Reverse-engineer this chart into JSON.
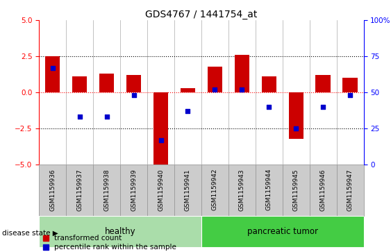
{
  "title": "GDS4767 / 1441754_at",
  "samples": [
    "GSM1159936",
    "GSM1159937",
    "GSM1159938",
    "GSM1159939",
    "GSM1159940",
    "GSM1159941",
    "GSM1159942",
    "GSM1159943",
    "GSM1159944",
    "GSM1159945",
    "GSM1159946",
    "GSM1159947"
  ],
  "transformed_count": [
    2.5,
    1.1,
    1.3,
    1.2,
    -5.0,
    0.3,
    1.8,
    2.6,
    1.1,
    -3.2,
    1.2,
    1.0
  ],
  "percentile_rank": [
    67,
    33,
    33,
    48,
    17,
    37,
    52,
    52,
    40,
    25,
    40,
    48
  ],
  "ylim_left": [
    -5,
    5
  ],
  "ylim_right": [
    0,
    100
  ],
  "yticks_left": [
    -5,
    -2.5,
    0,
    2.5,
    5
  ],
  "yticks_right": [
    0,
    25,
    50,
    75,
    100
  ],
  "bar_color": "#cc0000",
  "dot_color": "#0000cc",
  "healthy_indices": [
    0,
    1,
    2,
    3,
    4,
    5
  ],
  "tumor_indices": [
    6,
    7,
    8,
    9,
    10,
    11
  ],
  "healthy_color": "#aaddaa",
  "tumor_color": "#44cc44",
  "group_label_healthy": "healthy",
  "group_label_tumor": "pancreatic tumor",
  "disease_state_label": "disease state",
  "legend_red": "transformed count",
  "legend_blue": "percentile rank within the sample",
  "bar_width": 0.55,
  "dot_size": 20,
  "tick_label_fontsize": 6.5,
  "title_fontsize": 10,
  "gray_box_color": "#cccccc",
  "gray_box_edge": "#999999"
}
